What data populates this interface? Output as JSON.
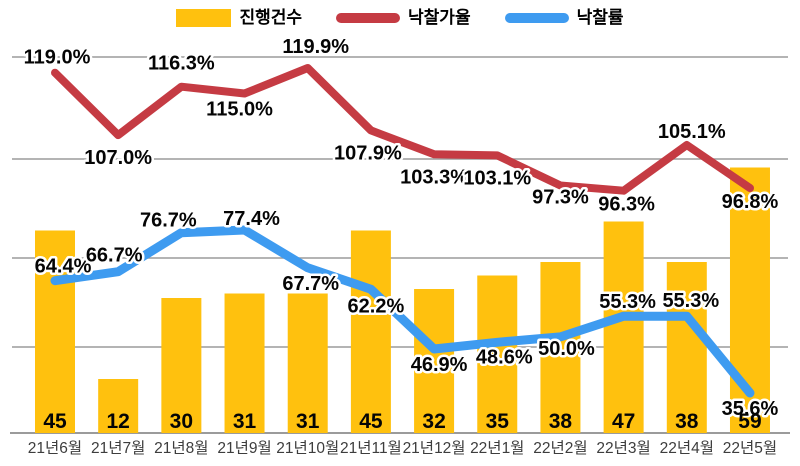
{
  "legend": {
    "items": [
      {
        "label": "진행건수",
        "swatch": "bar-swatch",
        "color": "#FFC10E"
      },
      {
        "label": "낙찰가율",
        "swatch": "line-swatch",
        "color": "#C53B43"
      },
      {
        "label": "낙찰률",
        "swatch": "line-swatch",
        "color": "#3E9BF0"
      }
    ]
  },
  "colors": {
    "bar": "#FFC10E",
    "bid_price_ratio_line": "#C53B43",
    "sale_rate_line": "#3E9BF0",
    "grid": "#9b9b9b",
    "axis": "#9b9b9b",
    "data_label": "#050505",
    "label_halo": "#ffffff",
    "x_axis_label": "#3d3d3d",
    "background": "#ffffff"
  },
  "chart_data": {
    "type": "bar+line",
    "title": "",
    "categories": [
      "21년6월",
      "21년7월",
      "21년8월",
      "21년9월",
      "21년10월",
      "21년11월",
      "21년12월",
      "22년1월",
      "22년2월",
      "22년3월",
      "22년4월",
      "22년5월"
    ],
    "series": [
      {
        "name": "진행건수",
        "type": "bar",
        "color": "#FFC10E",
        "values": [
          45,
          12,
          30,
          31,
          31,
          45,
          32,
          35,
          38,
          47,
          38,
          59
        ],
        "unit": "",
        "decimals": 0,
        "label_position": "inside-bottom"
      },
      {
        "name": "낙찰가율",
        "type": "line",
        "color": "#C53B43",
        "values": [
          119.0,
          107.0,
          116.3,
          115.0,
          119.9,
          107.9,
          103.3,
          103.1,
          97.3,
          96.3,
          105.1,
          96.8
        ],
        "unit": "%",
        "decimals": 1,
        "label_position": "near-point"
      },
      {
        "name": "낙찰률",
        "type": "line",
        "color": "#3E9BF0",
        "values": [
          64.4,
          66.7,
          76.7,
          77.4,
          67.7,
          62.2,
          46.9,
          48.6,
          50.0,
          55.3,
          55.3,
          35.6
        ],
        "unit": "%",
        "decimals": 1,
        "label_position": "near-point"
      }
    ],
    "grid": true,
    "horizontal_gridlines": 4,
    "legend_position": "top",
    "x_axis": {
      "labels_visible": true
    },
    "y_axis": {
      "visible": false,
      "bar_range": [
        0,
        96
      ],
      "bid_price_ratio_range_pct": [
        95,
        122
      ],
      "sale_rate_range_pct": [
        33,
        82
      ]
    }
  }
}
